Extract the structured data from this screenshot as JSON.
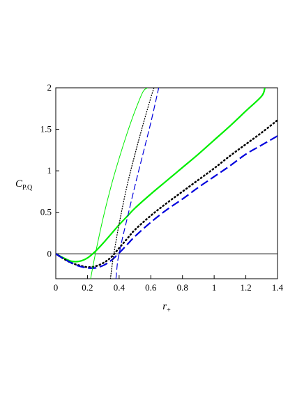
{
  "chart_data": {
    "type": "line",
    "title": "",
    "xlabel": {
      "main": "r",
      "sub": "+"
    },
    "ylabel": {
      "main": "C",
      "sub": "P.Q"
    },
    "xlim": [
      0,
      1.4
    ],
    "ylim": [
      -0.3,
      2
    ],
    "x_ticks": [
      0,
      0.2,
      0.4,
      0.6,
      0.8,
      1,
      1.2,
      1.4
    ],
    "x_tick_labels": [
      "0",
      "0.2",
      "0.4",
      "0.6",
      "0.8",
      "1",
      "1.2",
      "1.4"
    ],
    "y_ticks": [
      0,
      0.5,
      1,
      1.5,
      2
    ],
    "y_tick_labels": [
      "0",
      "0.5",
      "1",
      "1.5",
      "2"
    ],
    "grid": false,
    "legend": "none",
    "reference_line": {
      "y": 0,
      "color": "#000000"
    },
    "series": [
      {
        "style": "solid-thick",
        "color": "#00ee00",
        "x": [
          0,
          0.05,
          0.1,
          0.15,
          0.2,
          0.25,
          0.3,
          0.35,
          0.4,
          0.45,
          0.5,
          0.6,
          0.7,
          0.8,
          0.9,
          1.0,
          1.1,
          1.2,
          1.3,
          1.32
        ],
        "y": [
          0,
          -0.05,
          -0.09,
          -0.09,
          -0.05,
          0.03,
          0.13,
          0.24,
          0.35,
          0.45,
          0.55,
          0.72,
          0.88,
          1.04,
          1.2,
          1.37,
          1.54,
          1.72,
          1.9,
          2.0
        ]
      },
      {
        "style": "dotted-thick",
        "color": "#000000",
        "x": [
          0,
          0.05,
          0.1,
          0.15,
          0.2,
          0.25,
          0.3,
          0.35,
          0.4,
          0.45,
          0.5,
          0.6,
          0.7,
          0.8,
          0.9,
          1.0,
          1.1,
          1.2,
          1.3,
          1.4
        ],
        "y": [
          0,
          -0.06,
          -0.11,
          -0.14,
          -0.16,
          -0.15,
          -0.11,
          -0.04,
          0.07,
          0.18,
          0.29,
          0.46,
          0.61,
          0.75,
          0.89,
          1.03,
          1.18,
          1.32,
          1.46,
          1.61
        ]
      },
      {
        "style": "dashed-thick",
        "color": "#0000dd",
        "x": [
          0,
          0.05,
          0.1,
          0.15,
          0.2,
          0.25,
          0.3,
          0.35,
          0.4,
          0.45,
          0.5,
          0.6,
          0.7,
          0.8,
          0.9,
          1.0,
          1.1,
          1.2,
          1.3,
          1.4
        ],
        "y": [
          0,
          -0.06,
          -0.11,
          -0.15,
          -0.17,
          -0.17,
          -0.14,
          -0.08,
          0.01,
          0.11,
          0.21,
          0.38,
          0.53,
          0.66,
          0.8,
          0.93,
          1.06,
          1.2,
          1.31,
          1.42
        ]
      },
      {
        "style": "solid-thin",
        "color": "#00ee00",
        "x": [
          0.22,
          0.25,
          0.3,
          0.35,
          0.4,
          0.45,
          0.5,
          0.55,
          0.58
        ],
        "y": [
          -0.3,
          0.0,
          0.44,
          0.82,
          1.15,
          1.45,
          1.72,
          1.95,
          2.0
        ]
      },
      {
        "style": "dotted-thin",
        "color": "#000000",
        "x": [
          0.345,
          0.36,
          0.38,
          0.4,
          0.45,
          0.5,
          0.55,
          0.6,
          0.62
        ],
        "y": [
          -0.3,
          -0.08,
          0.15,
          0.36,
          0.82,
          1.2,
          1.55,
          1.88,
          2.0
        ]
      },
      {
        "style": "dashed-thin",
        "color": "#0000dd",
        "x": [
          0.38,
          0.39,
          0.4,
          0.42,
          0.45,
          0.5,
          0.55,
          0.6,
          0.65
        ],
        "y": [
          -0.3,
          -0.1,
          0.0,
          0.18,
          0.42,
          0.82,
          1.2,
          1.58,
          2.0
        ]
      }
    ]
  }
}
